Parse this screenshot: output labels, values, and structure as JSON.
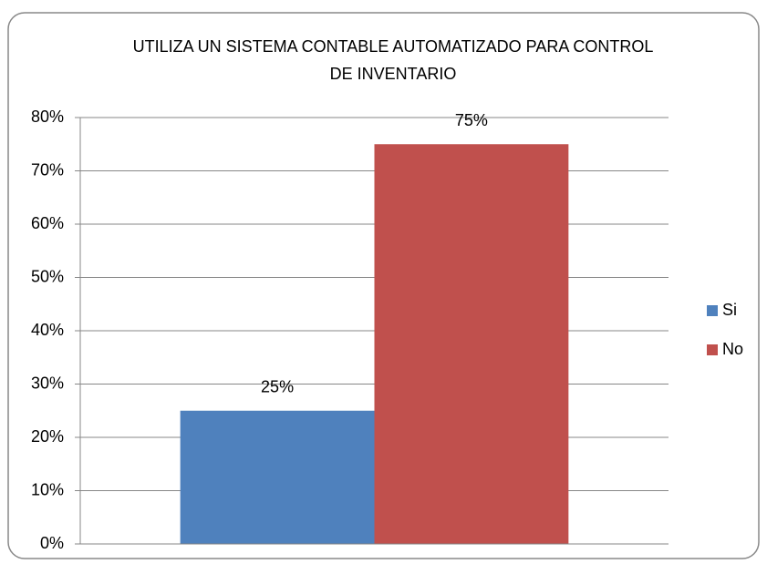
{
  "chart_data": {
    "type": "bar",
    "title": "UTILIZA UN SISTEMA CONTABLE AUTOMATIZADO PARA CONTROL DE INVENTARIO",
    "categories": [
      null
    ],
    "series": [
      {
        "name": "Si",
        "color": "#4f81bd",
        "values": [
          25
        ],
        "value_labels": [
          "25%"
        ]
      },
      {
        "name": "No",
        "color": "#c0504d",
        "values": [
          75
        ],
        "value_labels": [
          "75%"
        ]
      }
    ],
    "ylim": [
      0,
      80
    ],
    "yticks": [
      {
        "value": 0,
        "label": "0%"
      },
      {
        "value": 10,
        "label": "10%"
      },
      {
        "value": 20,
        "label": "20%"
      },
      {
        "value": 30,
        "label": "30%"
      },
      {
        "value": 40,
        "label": "40%"
      },
      {
        "value": 50,
        "label": "50%"
      },
      {
        "value": 60,
        "label": "60%"
      },
      {
        "value": 70,
        "label": "70%"
      },
      {
        "value": 80,
        "label": "80%"
      }
    ],
    "grid": true,
    "legend": "right"
  }
}
